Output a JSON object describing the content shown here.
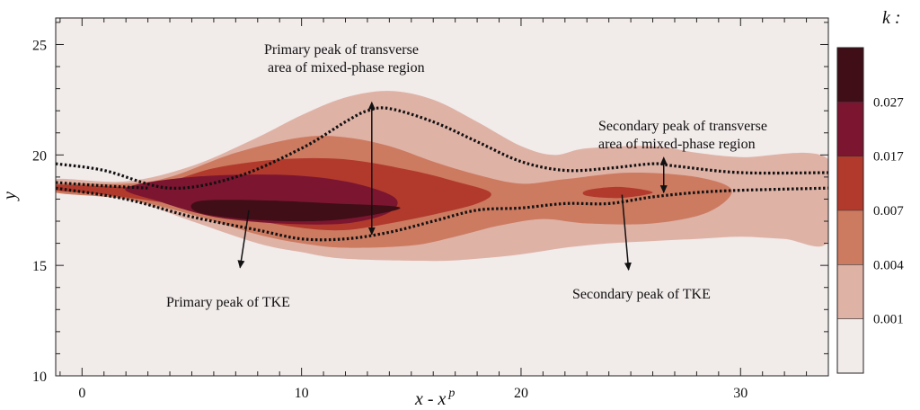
{
  "chart_data": {
    "type": "contour",
    "xlabel_main": "x - x",
    "xlabel_sup": "p",
    "ylabel": "y",
    "xlim": [
      -1.2,
      34
    ],
    "ylim": [
      10,
      26.2
    ],
    "x_ticks": [
      0,
      10,
      20,
      30
    ],
    "y_ticks": [
      10,
      15,
      20,
      25
    ],
    "x_tick_labels": [
      "0",
      "10",
      "20",
      "30"
    ],
    "y_tick_labels": [
      "10",
      "15",
      "20",
      "25"
    ],
    "colorbar": {
      "title": "k :",
      "levels": [
        "0.001",
        "0.004",
        "0.007",
        "0.017",
        "0.027"
      ],
      "colors": [
        "#f1ebea",
        "#dfb2a6",
        "#cc7b61",
        "#b13a2d",
        "#7b1530",
        "#3f0e17"
      ]
    },
    "contours": [
      {
        "level": 1,
        "color": "#dfb2a6",
        "points": [
          [
            -1.2,
            18.9
          ],
          [
            2,
            18.8
          ],
          [
            5,
            19.5
          ],
          [
            8,
            20.8
          ],
          [
            10,
            21.8
          ],
          [
            12,
            22.6
          ],
          [
            14,
            22.9
          ],
          [
            16,
            22.5
          ],
          [
            18,
            21.5
          ],
          [
            20,
            20.4
          ],
          [
            21.5,
            20
          ],
          [
            23,
            20.3
          ],
          [
            26,
            20.4
          ],
          [
            28,
            20.1
          ],
          [
            30,
            19.9
          ],
          [
            34,
            19.8
          ],
          [
            34,
            16.1
          ],
          [
            32,
            16.2
          ],
          [
            30,
            16.3
          ],
          [
            28,
            16.2
          ],
          [
            26,
            16.1
          ],
          [
            24,
            16
          ],
          [
            22,
            15.8
          ],
          [
            20,
            15.5
          ],
          [
            18,
            15.3
          ],
          [
            16,
            15.2
          ],
          [
            12,
            15.3
          ],
          [
            10,
            15.6
          ],
          [
            8,
            16
          ],
          [
            5,
            17
          ],
          [
            2,
            18
          ],
          [
            -1.2,
            18.3
          ]
        ]
      },
      {
        "level": 2,
        "color": "#cc7b61",
        "points": [
          [
            -1.2,
            18.7
          ],
          [
            2,
            18.7
          ],
          [
            4,
            19
          ],
          [
            7,
            20.1
          ],
          [
            10,
            20.8
          ],
          [
            12,
            20.8
          ],
          [
            14,
            20.4
          ],
          [
            16,
            19.7
          ],
          [
            18,
            19.1
          ],
          [
            20,
            18.7
          ],
          [
            22,
            18.9
          ],
          [
            25,
            19.2
          ],
          [
            28,
            19
          ],
          [
            29.6,
            18.4
          ],
          [
            28.5,
            17.4
          ],
          [
            26,
            16.9
          ],
          [
            23,
            16.9
          ],
          [
            21,
            17.1
          ],
          [
            19,
            16.8
          ],
          [
            17,
            16.3
          ],
          [
            15,
            15.9
          ],
          [
            12,
            15.8
          ],
          [
            10,
            16
          ],
          [
            8,
            16.4
          ],
          [
            5,
            17.3
          ],
          [
            2,
            18
          ],
          [
            -1.2,
            18.3
          ]
        ]
      },
      {
        "level": 3,
        "color": "#b13a2d",
        "points": [
          [
            -1.2,
            18.65
          ],
          [
            3,
            18.6
          ],
          [
            6,
            19.4
          ],
          [
            9,
            19.8
          ],
          [
            12,
            19.8
          ],
          [
            15,
            19.3
          ],
          [
            17,
            18.8
          ],
          [
            18.6,
            18.3
          ],
          [
            18,
            17.8
          ],
          [
            16,
            17.3
          ],
          [
            14,
            16.9
          ],
          [
            12,
            16.6
          ],
          [
            10,
            16.7
          ],
          [
            7,
            17.2
          ],
          [
            4,
            17.8
          ],
          [
            1,
            18.2
          ],
          [
            -1.2,
            18.4
          ]
        ]
      },
      {
        "level": 3,
        "color": "#b13a2d",
        "points": [
          [
            23,
            18.4
          ],
          [
            24.5,
            18.55
          ],
          [
            26,
            18.3
          ],
          [
            24.5,
            18.05
          ],
          [
            23,
            18.15
          ]
        ]
      },
      {
        "level": 4,
        "color": "#7b1530",
        "points": [
          [
            2,
            18.5
          ],
          [
            5,
            19
          ],
          [
            9,
            19.1
          ],
          [
            12,
            18.8
          ],
          [
            14.2,
            18.1
          ],
          [
            14,
            17.4
          ],
          [
            12,
            16.9
          ],
          [
            9,
            16.9
          ],
          [
            6,
            17.2
          ],
          [
            3.5,
            17.9
          ]
        ]
      },
      {
        "level": 5,
        "color": "#3f0e17",
        "points": [
          [
            5.3,
            17.9
          ],
          [
            8,
            17.95
          ],
          [
            11.5,
            17.8
          ],
          [
            14.5,
            17.6
          ],
          [
            11.5,
            17.05
          ],
          [
            8,
            17.05
          ],
          [
            5.3,
            17.4
          ]
        ]
      }
    ],
    "boundary_upper": [
      [
        -1.2,
        19.6
      ],
      [
        1,
        19.3
      ],
      [
        4,
        18.5
      ],
      [
        7,
        19
      ],
      [
        10,
        20.3
      ],
      [
        12,
        21.5
      ],
      [
        13,
        22
      ],
      [
        14,
        22.1
      ],
      [
        16,
        21.5
      ],
      [
        18,
        20.6
      ],
      [
        20,
        19.7
      ],
      [
        22,
        19.3
      ],
      [
        24,
        19.4
      ],
      [
        26,
        19.6
      ],
      [
        27,
        19.5
      ],
      [
        30,
        19.2
      ],
      [
        34,
        19.2
      ]
    ],
    "boundary_lower": [
      [
        -1.2,
        18.5
      ],
      [
        2,
        18
      ],
      [
        5,
        17.2
      ],
      [
        8,
        16.6
      ],
      [
        10,
        16.2
      ],
      [
        12,
        16.2
      ],
      [
        14,
        16.5
      ],
      [
        16,
        17
      ],
      [
        18,
        17.5
      ],
      [
        20,
        17.6
      ],
      [
        22,
        17.8
      ],
      [
        24,
        17.8
      ],
      [
        26,
        18.1
      ],
      [
        28,
        18.3
      ],
      [
        30,
        18.4
      ],
      [
        34,
        18.5
      ]
    ],
    "boundary_extra": [
      [
        -1.2,
        18.75
      ],
      [
        1,
        18.6
      ],
      [
        3,
        18.5
      ]
    ],
    "annotations": {
      "primary_area": {
        "line1": "Primary peak of transverse",
        "line2": "area of mixed-phase region"
      },
      "secondary_area": {
        "line1": "Secondary peak of transverse",
        "line2": "area of mixed-phase region"
      },
      "primary_tke": "Primary peak of TKE",
      "secondary_tke": "Secondary peak of TKE"
    },
    "arrows": [
      {
        "name": "primary-area-arrow",
        "type": "double",
        "from": [
          13.2,
          22.1
        ],
        "to": [
          13.2,
          16.4
        ]
      },
      {
        "name": "secondary-area-arrow",
        "type": "double",
        "from": [
          26.5,
          19.6
        ],
        "to": [
          26.5,
          18.3
        ]
      },
      {
        "name": "primary-tke-arrow",
        "type": "single",
        "from": [
          7.6,
          17.5
        ],
        "to": [
          7.2,
          14.9
        ]
      },
      {
        "name": "secondary-tke-arrow",
        "type": "single",
        "from": [
          24.6,
          18.2
        ],
        "to": [
          24.9,
          14.8
        ]
      }
    ]
  }
}
